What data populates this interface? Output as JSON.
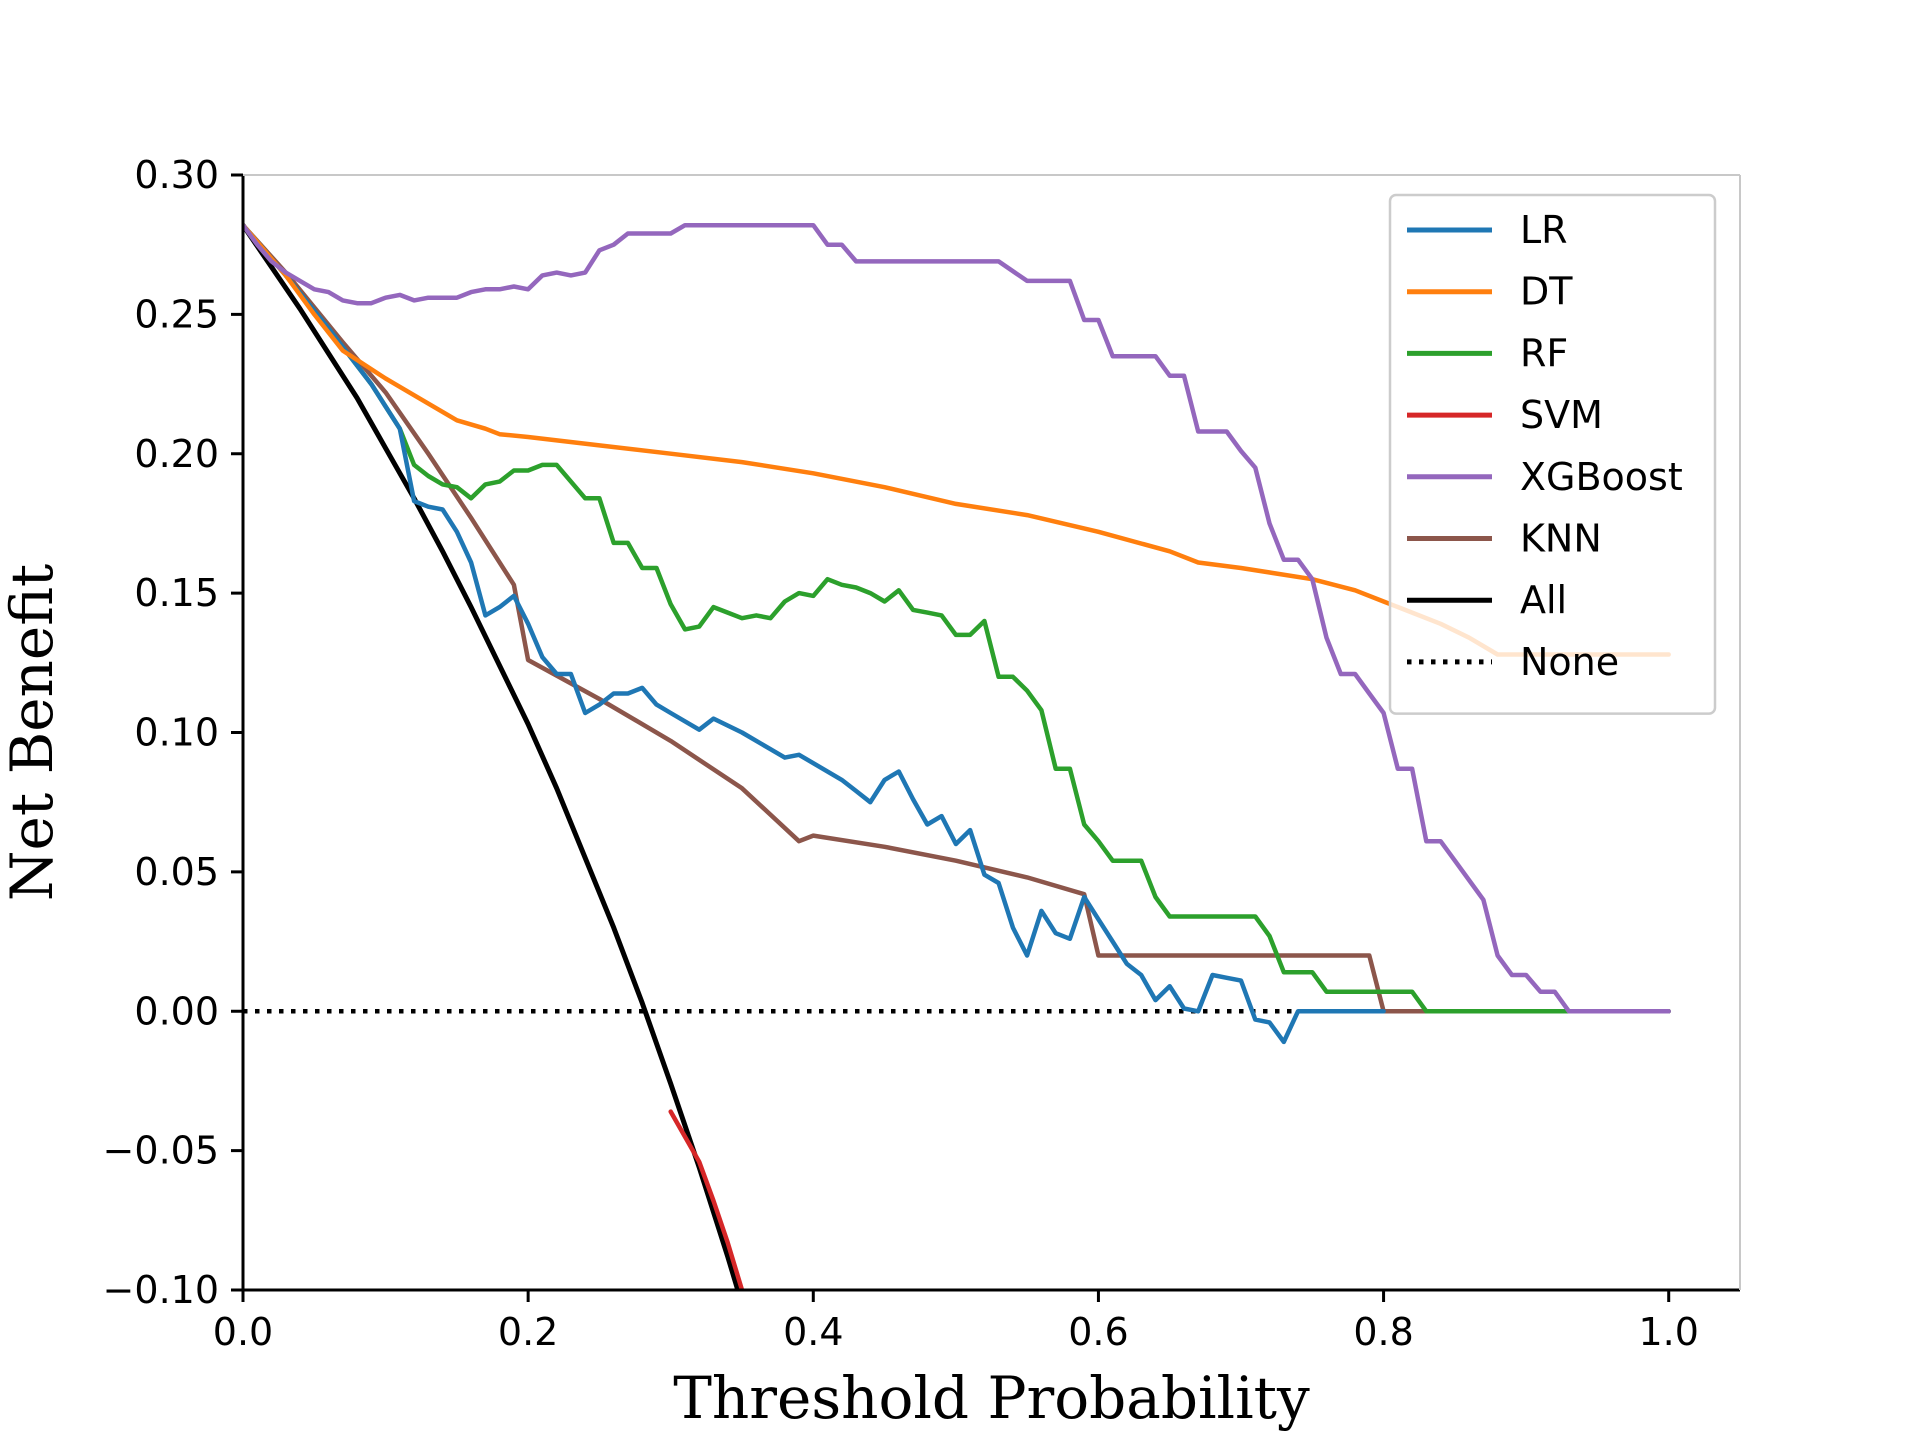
{
  "chart_data": {
    "type": "line",
    "title": "",
    "xlabel": "Threshold Probability",
    "ylabel": "Net Benefit",
    "xlim": [
      0.0,
      1.05
    ],
    "ylim": [
      -0.1,
      0.3
    ],
    "xticks": [
      "0.0",
      "0.2",
      "0.4",
      "0.6",
      "0.8",
      "1.0"
    ],
    "xtick_values": [
      0.0,
      0.2,
      0.4,
      0.6,
      0.8,
      1.0
    ],
    "yticks": [
      "0.30",
      "0.25",
      "0.20",
      "0.15",
      "0.10",
      "0.05",
      "0.00",
      "−0.05",
      "−0.10"
    ],
    "ytick_values": [
      0.3,
      0.25,
      0.2,
      0.15,
      0.1,
      0.05,
      0.0,
      -0.05,
      -0.1
    ],
    "grid": false,
    "legend_position": "top-right",
    "series": [
      {
        "name": "LR",
        "color": "#1f77b4",
        "style": "solid",
        "x": [
          0,
          0.03,
          0.06,
          0.09,
          0.11,
          0.12,
          0.13,
          0.14,
          0.15,
          0.16,
          0.17,
          0.18,
          0.19,
          0.2,
          0.21,
          0.22,
          0.23,
          0.24,
          0.25,
          0.26,
          0.27,
          0.28,
          0.29,
          0.3,
          0.32,
          0.33,
          0.35,
          0.37,
          0.38,
          0.39,
          0.42,
          0.43,
          0.44,
          0.45,
          0.46,
          0.47,
          0.48,
          0.49,
          0.5,
          0.51,
          0.52,
          0.53,
          0.54,
          0.55,
          0.56,
          0.57,
          0.58,
          0.59,
          0.6,
          0.61,
          0.62,
          0.63,
          0.64,
          0.65,
          0.66,
          0.67,
          0.68,
          0.69,
          0.7,
          0.71,
          0.72,
          0.73,
          0.74,
          0.75,
          0.77,
          0.8
        ],
        "y": [
          0.282,
          0.264,
          0.245,
          0.225,
          0.209,
          0.183,
          0.181,
          0.18,
          0.172,
          0.161,
          0.142,
          0.145,
          0.149,
          0.139,
          0.127,
          0.121,
          0.121,
          0.107,
          0.11,
          0.114,
          0.114,
          0.116,
          0.11,
          0.107,
          0.101,
          0.105,
          0.1,
          0.094,
          0.091,
          0.092,
          0.083,
          0.079,
          0.075,
          0.083,
          0.086,
          0.076,
          0.067,
          0.07,
          0.06,
          0.065,
          0.049,
          0.046,
          0.03,
          0.02,
          0.036,
          0.028,
          0.026,
          0.041,
          0.033,
          0.025,
          0.017,
          0.013,
          0.004,
          0.009,
          0.001,
          0.0,
          0.013,
          0.012,
          0.011,
          -0.003,
          -0.004,
          -0.011,
          0.0,
          0.0,
          0.0,
          0.0
        ]
      },
      {
        "name": "DT",
        "color": "#ff7f0e",
        "style": "solid",
        "x": [
          0,
          0.03,
          0.05,
          0.07,
          0.1,
          0.13,
          0.15,
          0.17,
          0.18,
          0.2,
          0.25,
          0.3,
          0.35,
          0.4,
          0.45,
          0.5,
          0.55,
          0.6,
          0.65,
          0.67,
          0.7,
          0.75,
          0.78,
          0.8,
          0.82,
          0.84,
          0.86,
          0.88,
          0.9,
          0.95,
          1.0
        ],
        "y": [
          0.282,
          0.264,
          0.25,
          0.237,
          0.227,
          0.218,
          0.212,
          0.209,
          0.207,
          0.206,
          0.203,
          0.2,
          0.197,
          0.193,
          0.188,
          0.182,
          0.178,
          0.172,
          0.165,
          0.161,
          0.159,
          0.155,
          0.151,
          0.147,
          0.143,
          0.139,
          0.134,
          0.128,
          0.128,
          0.128,
          0.128
        ]
      },
      {
        "name": "RF",
        "color": "#2ca02c",
        "style": "solid",
        "x": [
          0,
          0.03,
          0.06,
          0.09,
          0.11,
          0.12,
          0.13,
          0.14,
          0.15,
          0.16,
          0.17,
          0.18,
          0.19,
          0.2,
          0.21,
          0.22,
          0.23,
          0.24,
          0.25,
          0.26,
          0.27,
          0.28,
          0.29,
          0.3,
          0.31,
          0.32,
          0.33,
          0.34,
          0.35,
          0.36,
          0.37,
          0.38,
          0.39,
          0.4,
          0.41,
          0.42,
          0.43,
          0.44,
          0.45,
          0.46,
          0.47,
          0.48,
          0.49,
          0.5,
          0.51,
          0.52,
          0.53,
          0.54,
          0.55,
          0.56,
          0.57,
          0.58,
          0.59,
          0.6,
          0.61,
          0.62,
          0.63,
          0.64,
          0.65,
          0.66,
          0.67,
          0.68,
          0.69,
          0.7,
          0.71,
          0.72,
          0.73,
          0.74,
          0.75,
          0.76,
          0.77,
          0.78,
          0.79,
          0.8,
          0.81,
          0.82,
          0.83,
          0.85,
          0.9,
          1.0
        ],
        "y": [
          0.282,
          0.264,
          0.245,
          0.225,
          0.209,
          0.196,
          0.192,
          0.189,
          0.188,
          0.184,
          0.189,
          0.19,
          0.194,
          0.194,
          0.196,
          0.196,
          0.19,
          0.184,
          0.184,
          0.168,
          0.168,
          0.159,
          0.159,
          0.146,
          0.137,
          0.138,
          0.145,
          0.143,
          0.141,
          0.142,
          0.141,
          0.147,
          0.15,
          0.149,
          0.155,
          0.153,
          0.152,
          0.15,
          0.147,
          0.151,
          0.144,
          0.143,
          0.142,
          0.135,
          0.135,
          0.14,
          0.12,
          0.12,
          0.115,
          0.108,
          0.087,
          0.087,
          0.067,
          0.061,
          0.054,
          0.054,
          0.054,
          0.041,
          0.034,
          0.034,
          0.034,
          0.034,
          0.034,
          0.034,
          0.034,
          0.027,
          0.014,
          0.014,
          0.014,
          0.007,
          0.007,
          0.007,
          0.007,
          0.007,
          0.007,
          0.007,
          0.0,
          0.0,
          0.0,
          0.0
        ]
      },
      {
        "name": "SVM",
        "color": "#d62728",
        "style": "solid",
        "x": [
          0.3,
          0.31,
          0.32,
          0.33,
          0.34,
          0.35
        ],
        "y": [
          -0.036,
          -0.045,
          -0.054,
          -0.068,
          -0.083,
          -0.1
        ]
      },
      {
        "name": "XGBoost",
        "color": "#9467bd",
        "style": "solid",
        "x": [
          0,
          0.01,
          0.02,
          0.03,
          0.04,
          0.05,
          0.06,
          0.07,
          0.08,
          0.09,
          0.1,
          0.11,
          0.12,
          0.13,
          0.14,
          0.15,
          0.16,
          0.17,
          0.18,
          0.19,
          0.2,
          0.21,
          0.22,
          0.23,
          0.24,
          0.25,
          0.26,
          0.27,
          0.28,
          0.3,
          0.31,
          0.32,
          0.33,
          0.4,
          0.41,
          0.42,
          0.43,
          0.44,
          0.45,
          0.46,
          0.47,
          0.48,
          0.49,
          0.5,
          0.51,
          0.52,
          0.53,
          0.55,
          0.56,
          0.58,
          0.59,
          0.6,
          0.61,
          0.62,
          0.63,
          0.64,
          0.65,
          0.66,
          0.67,
          0.68,
          0.69,
          0.7,
          0.71,
          0.72,
          0.73,
          0.74,
          0.75,
          0.76,
          0.77,
          0.78,
          0.79,
          0.8,
          0.81,
          0.82,
          0.83,
          0.84,
          0.85,
          0.86,
          0.87,
          0.88,
          0.89,
          0.9,
          0.91,
          0.92,
          0.93,
          0.94,
          0.95,
          0.96,
          0.97,
          0.98,
          1.0
        ],
        "y": [
          0.282,
          0.275,
          0.269,
          0.265,
          0.262,
          0.259,
          0.258,
          0.255,
          0.254,
          0.254,
          0.256,
          0.257,
          0.255,
          0.256,
          0.256,
          0.256,
          0.258,
          0.259,
          0.259,
          0.26,
          0.259,
          0.264,
          0.265,
          0.264,
          0.265,
          0.273,
          0.275,
          0.279,
          0.279,
          0.279,
          0.282,
          0.282,
          0.282,
          0.282,
          0.275,
          0.275,
          0.269,
          0.269,
          0.269,
          0.269,
          0.269,
          0.269,
          0.269,
          0.269,
          0.269,
          0.269,
          0.269,
          0.262,
          0.262,
          0.262,
          0.248,
          0.248,
          0.235,
          0.235,
          0.235,
          0.235,
          0.228,
          0.228,
          0.208,
          0.208,
          0.208,
          0.201,
          0.195,
          0.175,
          0.162,
          0.162,
          0.155,
          0.134,
          0.121,
          0.121,
          0.114,
          0.107,
          0.087,
          0.087,
          0.061,
          0.061,
          0.054,
          0.047,
          0.04,
          0.02,
          0.013,
          0.013,
          0.007,
          0.007,
          0.0,
          0.0,
          0.0,
          0.0,
          0.0,
          0.0,
          0.0
        ]
      },
      {
        "name": "KNN",
        "color": "#8c564b",
        "style": "solid",
        "x": [
          0,
          0.03,
          0.07,
          0.1,
          0.13,
          0.16,
          0.19,
          0.2,
          0.25,
          0.3,
          0.35,
          0.39,
          0.4,
          0.45,
          0.5,
          0.55,
          0.59,
          0.6,
          0.65,
          0.7,
          0.79,
          0.8,
          0.85,
          0.9,
          1.0
        ],
        "y": [
          0.282,
          0.265,
          0.24,
          0.222,
          0.2,
          0.177,
          0.153,
          0.126,
          0.112,
          0.097,
          0.08,
          0.061,
          0.063,
          0.059,
          0.054,
          0.048,
          0.042,
          0.02,
          0.02,
          0.02,
          0.02,
          0.0,
          0.0,
          0.0,
          0.0
        ]
      },
      {
        "name": "All",
        "color": "#000000",
        "style": "solid",
        "x": [
          0,
          0.02,
          0.04,
          0.06,
          0.08,
          0.1,
          0.12,
          0.14,
          0.16,
          0.18,
          0.2,
          0.22,
          0.24,
          0.26,
          0.28,
          0.3,
          0.32,
          0.34,
          0.35
        ],
        "y": [
          0.282,
          0.267,
          0.252,
          0.236,
          0.22,
          0.202,
          0.184,
          0.165,
          0.145,
          0.124,
          0.103,
          0.08,
          0.055,
          0.03,
          0.003,
          -0.026,
          -0.056,
          -0.088,
          -0.105
        ]
      },
      {
        "name": "None",
        "color": "#000000",
        "style": "dotted",
        "x": [
          0,
          1.0
        ],
        "y": [
          0.0,
          0.0
        ]
      }
    ]
  }
}
